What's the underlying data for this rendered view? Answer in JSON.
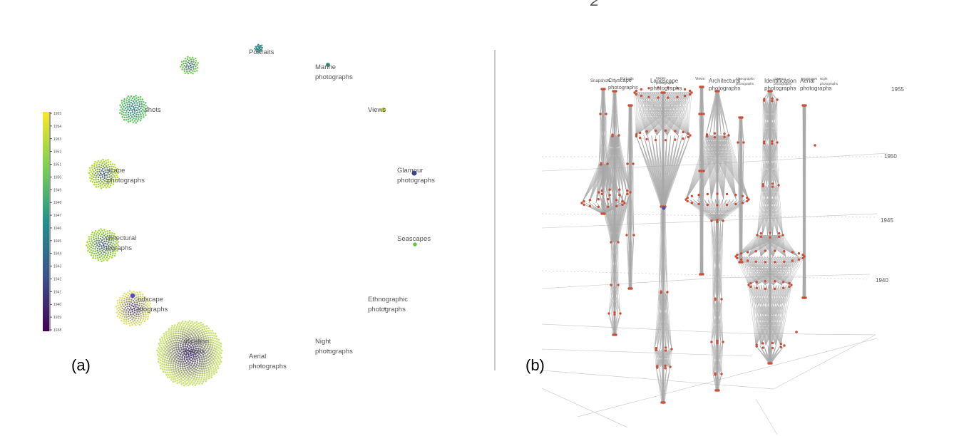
{
  "top_glyph": "2",
  "panel_a": {
    "letter": "(a)",
    "colorbar": {
      "ticks": [
        "1955",
        "1954",
        "1953",
        "1952",
        "1951",
        "1950",
        "1949",
        "1948",
        "1947",
        "1946",
        "1945",
        "1944",
        "1943",
        "1942",
        "1941",
        "1940",
        "1939",
        "1938"
      ],
      "colors": [
        "#fde725",
        "#440154"
      ]
    },
    "clusters": [
      {
        "name": "portraits",
        "size": 4,
        "inner": "#2a6f8e",
        "outer": "#3c9b85"
      },
      {
        "name": "c1",
        "size": 7,
        "inner": "#3b528b",
        "outer": "#7ad151"
      },
      {
        "name": "snapshots",
        "size": 10,
        "inner": "#31688e",
        "outer": "#5ec962"
      },
      {
        "name": "cityscape",
        "size": 10,
        "inner": "#3b528b",
        "outer": "#b5de2b"
      },
      {
        "name": "architectural",
        "size": 10,
        "inner": "#3b528b",
        "outer": "#a0da39"
      },
      {
        "name": "landscape",
        "size": 12,
        "inner": "#46327e",
        "outer": "#e0e06a"
      },
      {
        "name": "identification",
        "size": 20,
        "inner": "#46327e",
        "outer": "#cfe37b"
      }
    ],
    "labels": [
      {
        "id": "portraits",
        "lines": [
          "Portraits"
        ]
      },
      {
        "id": "marine",
        "lines": [
          "Marine",
          "photographs"
        ]
      },
      {
        "id": "snapshots",
        "lines": [
          "shots"
        ]
      },
      {
        "id": "views",
        "lines": [
          "Views"
        ]
      },
      {
        "id": "cityscape",
        "lines": [
          "scape",
          "photographs"
        ]
      },
      {
        "id": "glamour",
        "lines": [
          "Glamour",
          "photographs"
        ]
      },
      {
        "id": "architectural",
        "lines": [
          "chitectural",
          "tographs"
        ]
      },
      {
        "id": "seascapes",
        "lines": [
          "Seascapes"
        ]
      },
      {
        "id": "landscape",
        "lines": [
          "ndscape",
          "otographs"
        ]
      },
      {
        "id": "ethnographic",
        "lines": [
          "Ethnographic",
          "photographs"
        ]
      },
      {
        "id": "identification",
        "lines": [
          "tification",
          "graphs"
        ]
      },
      {
        "id": "night",
        "lines": [
          "Night",
          "photographs"
        ]
      },
      {
        "id": "aerial",
        "lines": [
          "Aerial",
          "photographs"
        ]
      }
    ],
    "dots": [
      {
        "id": "marine",
        "color": "#3c8c7a"
      },
      {
        "id": "views",
        "color": "#c2df23"
      },
      {
        "id": "glamour",
        "color": "#3b3f8a"
      },
      {
        "id": "seascapes",
        "color": "#6cc34a"
      },
      {
        "id": "landscape-extra",
        "color": "#4f4cc0"
      }
    ]
  },
  "panel_b": {
    "letter": "(b)",
    "years": [
      "1955",
      "1950",
      "1945",
      "1940"
    ],
    "top_labels": [
      {
        "id": "snapshots",
        "lines": [
          "Snapshots"
        ]
      },
      {
        "id": "cityscape",
        "lines": [
          "Cityscape",
          "photographs"
        ]
      },
      {
        "id": "portraits",
        "lines": [
          "Portraits"
        ]
      },
      {
        "id": "landscape",
        "lines": [
          "Landscape",
          "photographs"
        ]
      },
      {
        "id": "marine",
        "lines": [
          "Marine",
          "photographs"
        ]
      },
      {
        "id": "views",
        "lines": [
          "Views"
        ]
      },
      {
        "id": "architectural",
        "lines": [
          "Architectural",
          "photographs"
        ]
      },
      {
        "id": "ethnographic",
        "lines": [
          "Ethnographic",
          "photographs"
        ]
      },
      {
        "id": "identification",
        "lines": [
          "Identification",
          "photographs"
        ]
      },
      {
        "id": "glamour",
        "lines": [
          "Glamour",
          "photographs"
        ]
      },
      {
        "id": "aerial",
        "lines": [
          "Aerial",
          "photographs"
        ]
      },
      {
        "id": "seascapes",
        "lines": [
          "Seascapes"
        ]
      },
      {
        "id": "night",
        "lines": [
          "Night",
          "photographs"
        ]
      }
    ],
    "node_color": "#c8503a",
    "edge_color": "#a8a8a8",
    "grid_color": "#cfcfcf"
  }
}
